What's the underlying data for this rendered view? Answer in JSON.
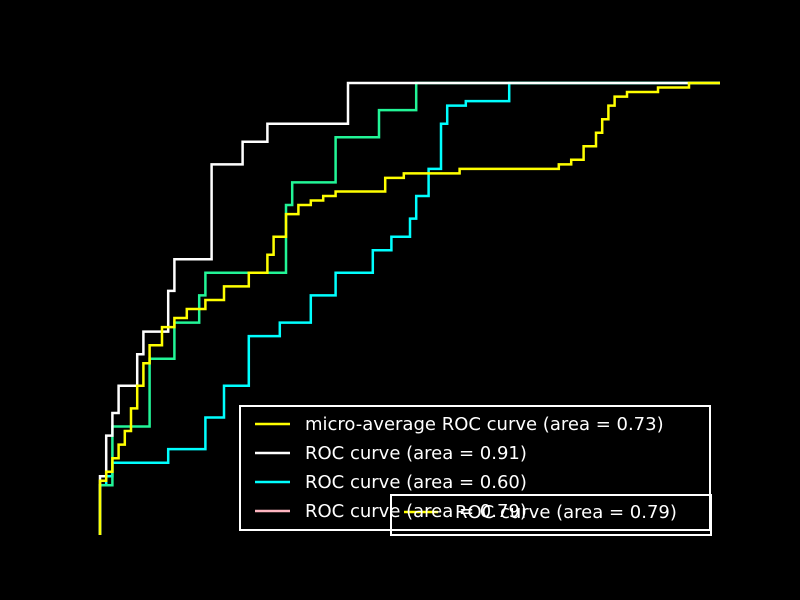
{
  "chart_data": {
    "type": "line",
    "title": "",
    "xlabel": "",
    "ylabel": "",
    "xlim": [
      0,
      1
    ],
    "ylim": [
      0,
      1
    ],
    "grid": false,
    "legend_placement": "lower-right",
    "series": [
      {
        "name": "micro-average ROC curve (area = 0.73)",
        "color": "#ffff00",
        "x": [
          0.0,
          0.0,
          0.01,
          0.01,
          0.02,
          0.02,
          0.03,
          0.03,
          0.04,
          0.04,
          0.05,
          0.05,
          0.06,
          0.06,
          0.07,
          0.07,
          0.08,
          0.08,
          0.1,
          0.1,
          0.12,
          0.12,
          0.14,
          0.14,
          0.17,
          0.17,
          0.2,
          0.2,
          0.24,
          0.24,
          0.27,
          0.27,
          0.28,
          0.28,
          0.3,
          0.3,
          0.32,
          0.32,
          0.34,
          0.34,
          0.36,
          0.36,
          0.38,
          0.38,
          0.46,
          0.46,
          0.49,
          0.49,
          0.5,
          0.5,
          0.58,
          0.58,
          0.62,
          0.62,
          0.74,
          0.74,
          0.76,
          0.76,
          0.78,
          0.78,
          0.8,
          0.8,
          0.81,
          0.81,
          0.82,
          0.82,
          0.83,
          0.83,
          0.85,
          0.85,
          0.88,
          0.88,
          0.9,
          0.9,
          0.95,
          0.95,
          0.99,
          0.99,
          1.0
        ],
        "y": [
          0.0,
          0.12,
          0.12,
          0.14,
          0.14,
          0.17,
          0.17,
          0.2,
          0.2,
          0.23,
          0.23,
          0.28,
          0.28,
          0.33,
          0.33,
          0.38,
          0.38,
          0.42,
          0.42,
          0.46,
          0.46,
          0.48,
          0.48,
          0.5,
          0.5,
          0.52,
          0.52,
          0.55,
          0.55,
          0.58,
          0.58,
          0.62,
          0.62,
          0.66,
          0.66,
          0.71,
          0.71,
          0.73,
          0.73,
          0.74,
          0.74,
          0.75,
          0.75,
          0.76,
          0.76,
          0.79,
          0.79,
          0.8,
          0.8,
          0.8,
          0.8,
          0.81,
          0.81,
          0.81,
          0.81,
          0.82,
          0.82,
          0.83,
          0.83,
          0.86,
          0.86,
          0.89,
          0.89,
          0.92,
          0.92,
          0.95,
          0.95,
          0.97,
          0.97,
          0.98,
          0.98,
          0.98,
          0.98,
          0.99,
          0.99,
          1.0,
          1.0,
          1.0,
          1.0
        ]
      },
      {
        "name": "ROC curve (area = 0.91)",
        "color": "#ffffff",
        "x": [
          0.0,
          0.0,
          0.01,
          0.01,
          0.02,
          0.02,
          0.03,
          0.03,
          0.06,
          0.06,
          0.07,
          0.07,
          0.11,
          0.11,
          0.12,
          0.12,
          0.18,
          0.18,
          0.23,
          0.23,
          0.27,
          0.27,
          0.4,
          0.4,
          1.0
        ],
        "y": [
          0.0,
          0.13,
          0.13,
          0.22,
          0.22,
          0.27,
          0.27,
          0.33,
          0.33,
          0.4,
          0.4,
          0.45,
          0.45,
          0.54,
          0.54,
          0.61,
          0.61,
          0.82,
          0.82,
          0.87,
          0.87,
          0.91,
          0.91,
          1.0,
          1.0
        ]
      },
      {
        "name": "ROC curve (area = 0.60)",
        "color": "#00ffff",
        "x": [
          0.0,
          0.0,
          0.01,
          0.01,
          0.02,
          0.02,
          0.11,
          0.11,
          0.17,
          0.17,
          0.2,
          0.2,
          0.24,
          0.24,
          0.29,
          0.29,
          0.34,
          0.34,
          0.38,
          0.38,
          0.44,
          0.44,
          0.47,
          0.47,
          0.5,
          0.5,
          0.51,
          0.51,
          0.53,
          0.53,
          0.55,
          0.55,
          0.56,
          0.56,
          0.59,
          0.59,
          0.66,
          0.66,
          0.76,
          0.76,
          0.84,
          0.84,
          1.0
        ],
        "y": [
          0.0,
          0.11,
          0.11,
          0.13,
          0.13,
          0.16,
          0.16,
          0.19,
          0.19,
          0.26,
          0.26,
          0.33,
          0.33,
          0.44,
          0.44,
          0.47,
          0.47,
          0.53,
          0.53,
          0.58,
          0.58,
          0.63,
          0.63,
          0.66,
          0.66,
          0.7,
          0.7,
          0.75,
          0.75,
          0.81,
          0.81,
          0.91,
          0.91,
          0.95,
          0.95,
          0.96,
          0.96,
          1.0,
          1.0,
          1.0,
          1.0,
          1.0,
          1.0
        ]
      },
      {
        "name": "ROC curve (area = 0.79)",
        "color": "#22f597",
        "x": [
          0.0,
          0.0,
          0.02,
          0.02,
          0.08,
          0.08,
          0.12,
          0.12,
          0.16,
          0.16,
          0.17,
          0.17,
          0.22,
          0.22,
          0.3,
          0.3,
          0.31,
          0.31,
          0.38,
          0.38,
          0.45,
          0.45,
          0.51,
          0.51,
          1.0
        ],
        "y": [
          0.0,
          0.11,
          0.11,
          0.24,
          0.24,
          0.39,
          0.39,
          0.47,
          0.47,
          0.53,
          0.53,
          0.58,
          0.58,
          0.58,
          0.58,
          0.73,
          0.73,
          0.78,
          0.78,
          0.88,
          0.88,
          0.94,
          0.94,
          1.0,
          1.0
        ]
      }
    ],
    "legend_entries_visible": [
      "micro-average ROC curve (area = 0.73)",
      "ROC curve (area = 0.91)",
      "ROC curve (area = 0.60)",
      "ROC curve (area = 0.79)"
    ],
    "legend_overlap_text": "ROC curve (area = 0.79)",
    "legend_overlap_color": "#ffff00",
    "legend_4th_swatch_color": "#ffb6c1"
  }
}
